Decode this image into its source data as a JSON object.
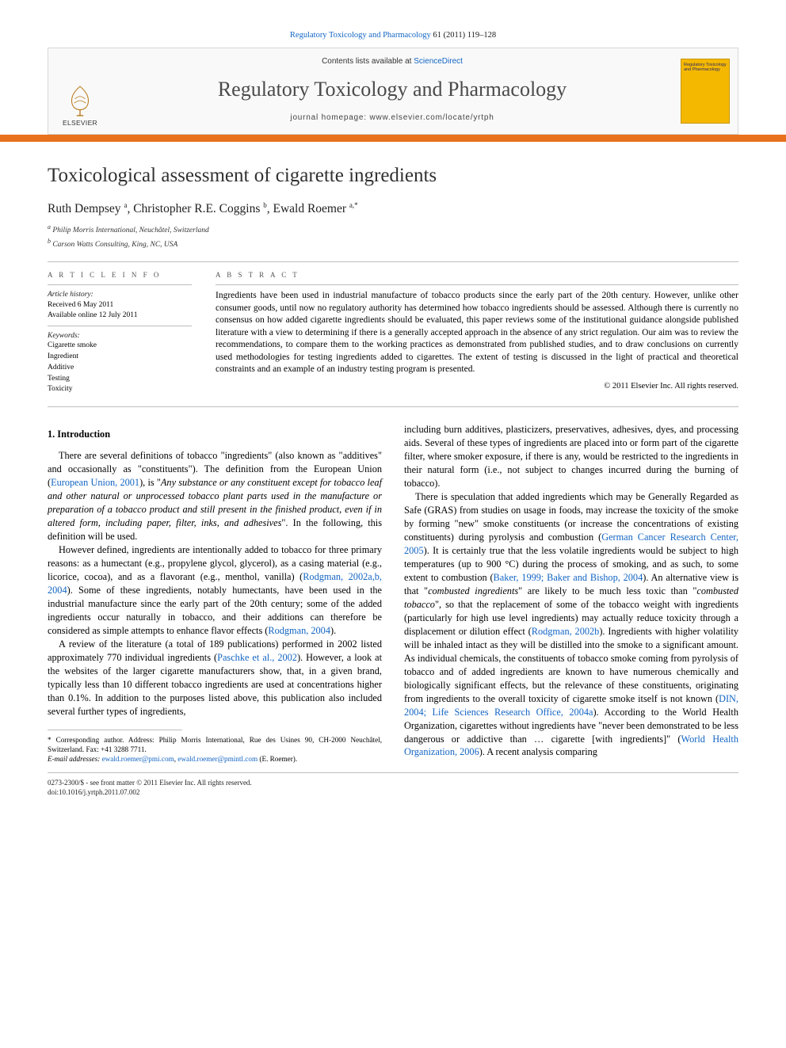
{
  "citation": {
    "journal": "Regulatory Toxicology and Pharmacology",
    "volpages": "61 (2011) 119–128"
  },
  "header": {
    "contents_prefix": "Contents lists available at ",
    "contents_link": "ScienceDirect",
    "journal_name": "Regulatory Toxicology and Pharmacology",
    "homepage_prefix": "journal homepage: ",
    "homepage_url": "www.elsevier.com/locate/yrtph",
    "elsevier_word": "ELSEVIER",
    "cover_title": "Regulatory Toxicology and Pharmacology"
  },
  "title": "Toxicological assessment of cigarette ingredients",
  "authors_html": "Ruth Dempsey <sup>a</sup>, Christopher R.E. Coggins <sup>b</sup>, Ewald Roemer <sup>a,*</sup>",
  "affiliations": [
    "a Philip Morris International, Neuchâtel, Switzerland",
    "b Carson Watts Consulting, King, NC, USA"
  ],
  "info": {
    "heading": "A R T I C L E   I N F O",
    "history_label": "Article history:",
    "received": "Received 6 May 2011",
    "online": "Available online 12 July 2011",
    "keywords_label": "Keywords:",
    "keywords": [
      "Cigarette smoke",
      "Ingredient",
      "Additive",
      "Testing",
      "Toxicity"
    ]
  },
  "abstract": {
    "heading": "A B S T R A C T",
    "text": "Ingredients have been used in industrial manufacture of tobacco products since the early part of the 20th century. However, unlike other consumer goods, until now no regulatory authority has determined how tobacco ingredients should be assessed. Although there is currently no consensus on how added cigarette ingredients should be evaluated, this paper reviews some of the institutional guidance alongside published literature with a view to determining if there is a generally accepted approach in the absence of any strict regulation. Our aim was to review the recommendations, to compare them to the working practices as demonstrated from published studies, and to draw conclusions on currently used methodologies for testing ingredients added to cigarettes. The extent of testing is discussed in the light of practical and theoretical constraints and an example of an industry testing program is presented.",
    "copyright": "© 2011 Elsevier Inc. All rights reserved."
  },
  "section1": {
    "heading": "1. Introduction",
    "p1_a": "There are several definitions of tobacco \"ingredients\" (also known as \"additives\" and occasionally as \"constituents\"). The definition from the European Union (",
    "p1_ref1": "European Union, 2001",
    "p1_b": "), is \"",
    "p1_it": "Any substance or any constituent except for tobacco leaf and other natural or unprocessed tobacco plant parts used in the manufacture or preparation of a tobacco product and still present in the finished product, even if in altered form, including paper, filter, inks, and adhesives",
    "p1_c": "\". In the following, this definition will be used.",
    "p2_a": "However defined, ingredients are intentionally added to tobacco for three primary reasons: as a humectant (e.g., propylene glycol, glycerol), as a casing material (e.g., licorice, cocoa), and as a flavorant (e.g., menthol, vanilla) (",
    "p2_ref1": "Rodgman, 2002a,b, 2004",
    "p2_b": "). Some of these ingredients, notably humectants, have been used in the industrial manufacture since the early part of the 20th century; some of the added ingredients occur naturally in tobacco, and their additions can therefore be considered as simple attempts to enhance flavor effects (",
    "p2_ref2": "Rodgman, 2004",
    "p2_c": ").",
    "p3_a": "A review of the literature (a total of 189 publications) performed in 2002 listed approximately 770 individual ingredients (",
    "p3_ref1": "Paschke et al., 2002",
    "p3_b": "). However, a look at the websites of the larger cigarette manufacturers show, that, in a given brand, typically less than 10 different tobacco ingredients are used at concentrations higher than 0.1%. In addition to the purposes listed above, this publication also included several further types of ingredients,",
    "p4": "including burn additives, plasticizers, preservatives, adhesives, dyes, and processing aids. Several of these types of ingredients are placed into or form part of the cigarette filter, where smoker exposure, if there is any, would be restricted to the ingredients in their natural form (i.e., not subject to changes incurred during the burning of tobacco).",
    "p5_a": "There is speculation that added ingredients which may be Generally Regarded as Safe (GRAS) from studies on usage in foods, may increase the toxicity of the smoke by forming \"new\" smoke constituents (or increase the concentrations of existing constituents) during pyrolysis and combustion (",
    "p5_ref1": "German Cancer Research Center, 2005",
    "p5_b": "). It is certainly true that the less volatile ingredients would be subject to high temperatures (up to 900 °C) during the process of smoking, and as such, to some extent to combustion (",
    "p5_ref2": "Baker, 1999; Baker and Bishop, 2004",
    "p5_c": "). An alternative view is that \"",
    "p5_it1": "combusted ingredients",
    "p5_d": "\" are likely to be much less toxic than \"",
    "p5_it2": "combusted tobacco",
    "p5_e": "\", so that the replacement of some of the tobacco weight with ingredients (particularly for high use level ingredients) may actually reduce toxicity through a displacement or dilution effect (",
    "p5_ref3": "Rodgman, 2002b",
    "p5_f": "). Ingredients with higher volatility will be inhaled intact as they will be distilled into the smoke to a significant amount. As individual chemicals, the constituents of tobacco smoke coming from pyrolysis of tobacco and of added ingredients are known to have numerous chemically and biologically significant effects, but the relevance of these constituents, originating from ingredients to the overall toxicity of cigarette smoke itself is not known (",
    "p5_ref4": "DIN, 2004; Life Sciences Research Office, 2004a",
    "p5_g": "). According to the World Health Organization, cigarettes without ingredients have \"never been demonstrated to be less dangerous or addictive than … cigarette [with ingredients]\" (",
    "p5_ref5": "World Health Organization, 2006",
    "p5_h": "). A recent analysis comparing"
  },
  "footnotes": {
    "corr": "* Corresponding author. Address: Philip Morris International, Rue des Usines 90, CH-2000 Neuchâtel, Switzerland. Fax: +41 3288 7711.",
    "email_label": "E-mail addresses:",
    "email1": "ewald.roemer@pmi.com",
    "email_sep": ", ",
    "email2": "ewald.roemer@pmintl.com",
    "email_tail": " (E. Roemer)."
  },
  "bottom": {
    "left1": "0273-2300/$ - see front matter © 2011 Elsevier Inc. All rights reserved.",
    "left2": "doi:10.1016/j.yrtph.2011.07.002"
  },
  "colors": {
    "link": "#1265c4",
    "orange": "#e8711c",
    "cover": "#f5b800"
  }
}
